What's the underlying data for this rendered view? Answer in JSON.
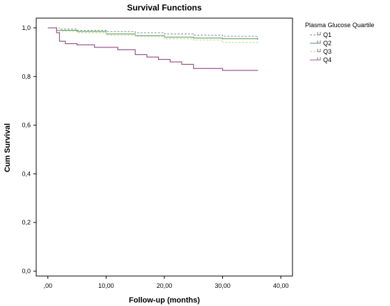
{
  "chart_data": {
    "type": "line",
    "title": "Survival Functions",
    "xlabel": "Follow-up (months)",
    "ylabel": "Cum Survival",
    "xlim": [
      -2,
      42
    ],
    "ylim": [
      -0.02,
      1.04
    ],
    "xticks": [
      {
        "value": 0,
        "label": ",00"
      },
      {
        "value": 10,
        "label": "10,00"
      },
      {
        "value": 20,
        "label": "20,00"
      },
      {
        "value": 30,
        "label": "30,00"
      },
      {
        "value": 40,
        "label": "40,00"
      }
    ],
    "yticks": [
      {
        "value": 0.0,
        "label": "0,0"
      },
      {
        "value": 0.2,
        "label": "0,2"
      },
      {
        "value": 0.4,
        "label": "0,4"
      },
      {
        "value": 0.6,
        "label": "0,6"
      },
      {
        "value": 0.8,
        "label": "0,8"
      },
      {
        "value": 1.0,
        "label": "1,0"
      }
    ],
    "grid": false,
    "legend": {
      "title": "Plasma Glucose Quartile",
      "placement": "right"
    },
    "series": [
      {
        "name": "Q1",
        "color": "#7f8da2",
        "dashed": true,
        "x": [
          0,
          2,
          5,
          10,
          15,
          20,
          25,
          30,
          36
        ],
        "y": [
          1.0,
          0.995,
          0.99,
          0.985,
          0.98,
          0.975,
          0.97,
          0.965,
          0.95
        ]
      },
      {
        "name": "Q2",
        "color": "#4c9a53",
        "dashed": false,
        "x": [
          0,
          1.5,
          5,
          10,
          15,
          20,
          25,
          30,
          36
        ],
        "y": [
          1.0,
          0.99,
          0.985,
          0.975,
          0.968,
          0.962,
          0.958,
          0.955,
          0.952
        ]
      },
      {
        "name": "Q3",
        "color": "#c4d58c",
        "dashed": true,
        "x": [
          0,
          2,
          5,
          10,
          15,
          20,
          25,
          30,
          36
        ],
        "y": [
          1.0,
          0.985,
          0.98,
          0.97,
          0.965,
          0.955,
          0.95,
          0.94,
          0.935
        ]
      },
      {
        "name": "Q4",
        "color": "#9b5a8f",
        "dashed": false,
        "x": [
          0,
          1.5,
          2,
          3,
          5,
          8,
          12,
          15,
          17,
          19,
          21,
          23,
          25,
          30,
          36
        ],
        "y": [
          1.0,
          0.98,
          0.945,
          0.935,
          0.93,
          0.92,
          0.91,
          0.89,
          0.88,
          0.87,
          0.86,
          0.85,
          0.833,
          0.825,
          0.823
        ]
      }
    ]
  }
}
